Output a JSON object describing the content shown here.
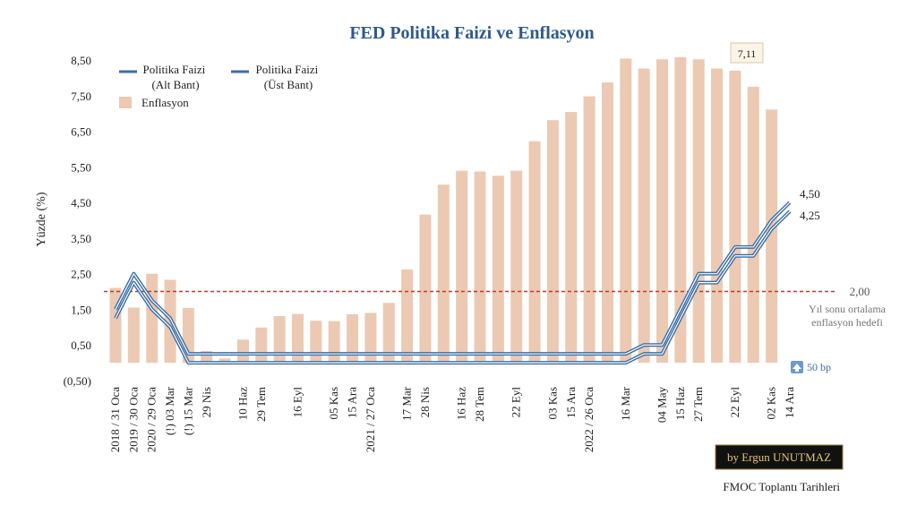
{
  "chart_data": {
    "type": "bar+line",
    "title": "FED Politika Faizi ve Enflasyon",
    "ylabel": "Yüzde (%)",
    "xlabel": "FMOC Toplantı Tarihleri",
    "ylim": [
      -0.5,
      8.5
    ],
    "yticks": [
      "(0,50)",
      "0,50",
      "1,50",
      "2,50",
      "3,50",
      "4,50",
      "5,50",
      "6,50",
      "7,50",
      "8,50"
    ],
    "ytick_values": [
      -0.5,
      0.5,
      1.5,
      2.5,
      3.5,
      4.5,
      5.5,
      6.5,
      7.5,
      8.5
    ],
    "xticks": [
      {
        "label": "2018 / 31 Oca",
        "pos": 0
      },
      {
        "label": "2019 / 30 Oca",
        "pos": 1
      },
      {
        "label": "2020 / 29 Oca",
        "pos": 2
      },
      {
        "label": "(!) 03 Mar",
        "pos": 3
      },
      {
        "label": "(!) 15 Mar",
        "pos": 4
      },
      {
        "label": "29 Nis",
        "pos": 5
      },
      {
        "label": "10 Haz",
        "pos": 7
      },
      {
        "label": "29 Tem",
        "pos": 8
      },
      {
        "label": "16 Eyl",
        "pos": 10
      },
      {
        "label": "05 Kas",
        "pos": 12
      },
      {
        "label": "15 Ara",
        "pos": 13
      },
      {
        "label": "2021 / 27 Oca",
        "pos": 14
      },
      {
        "label": "17 Mar",
        "pos": 16
      },
      {
        "label": "28 Nis",
        "pos": 17
      },
      {
        "label": "16 Haz",
        "pos": 19
      },
      {
        "label": "28 Tem",
        "pos": 20
      },
      {
        "label": "22 Eyl",
        "pos": 22
      },
      {
        "label": "03 Kas",
        "pos": 24
      },
      {
        "label": "15 Ara",
        "pos": 25
      },
      {
        "label": "2022 / 26 Oca",
        "pos": 26
      },
      {
        "label": "16 Mar",
        "pos": 28
      },
      {
        "label": "04 May",
        "pos": 30
      },
      {
        "label": "15 Haz",
        "pos": 31
      },
      {
        "label": "27 Tem",
        "pos": 32
      },
      {
        "label": "22 Eyl",
        "pos": 34
      },
      {
        "label": "02 Kas",
        "pos": 36
      },
      {
        "label": "14 Ara",
        "pos": 37
      }
    ],
    "inflation": [
      2.1,
      1.55,
      2.5,
      2.33,
      1.54,
      0.33,
      0.12,
      0.65,
      0.99,
      1.31,
      1.37,
      1.18,
      1.17,
      1.36,
      1.4,
      1.68,
      2.62,
      4.16,
      5.0,
      5.39,
      5.37,
      5.25,
      5.39,
      6.22,
      6.81,
      7.04,
      7.48,
      7.87,
      8.54,
      8.26,
      8.52,
      8.58,
      8.52,
      8.26,
      8.2,
      7.75,
      7.11
    ],
    "series": [
      {
        "name": "Politika Faizi (Alt Bant)",
        "x": [
          0,
          1,
          2,
          3,
          4,
          28,
          29,
          30,
          32,
          33,
          34,
          35,
          36,
          37
        ],
        "values": [
          1.25,
          2.25,
          1.5,
          1.0,
          0.0,
          0.0,
          0.25,
          0.25,
          2.25,
          2.25,
          3.0,
          3.0,
          3.75,
          4.25
        ]
      },
      {
        "name": "Politika Faizi (Üst Bant)",
        "x": [
          0,
          1,
          2,
          3,
          4,
          28,
          29,
          30,
          32,
          33,
          34,
          35,
          36,
          37
        ],
        "values": [
          1.5,
          2.5,
          1.75,
          1.25,
          0.25,
          0.25,
          0.5,
          0.5,
          2.5,
          2.5,
          3.25,
          3.25,
          4.0,
          4.5
        ]
      }
    ],
    "legend": {
      "lower": "Politika Faizi\n(Alt Bant)",
      "upper": "Politika Faizi\n(Üst Bant)",
      "bars": "Enflasyon"
    },
    "target": {
      "value": 2.0,
      "label": "2,00",
      "note1": "Yıl sonu ortalama",
      "note2": "enflasyon hedefi"
    },
    "end_labels": {
      "upper": "4,50",
      "lower": "4,25"
    },
    "last_inflation_label": "7,11",
    "bp_label": "50 bp",
    "credit": "by Ergun UNUTMAZ",
    "colors": {
      "bars": "#ecc9b3",
      "line": "#3a6ea5",
      "target": "#c0392b",
      "title": "#2d5a8a"
    }
  }
}
